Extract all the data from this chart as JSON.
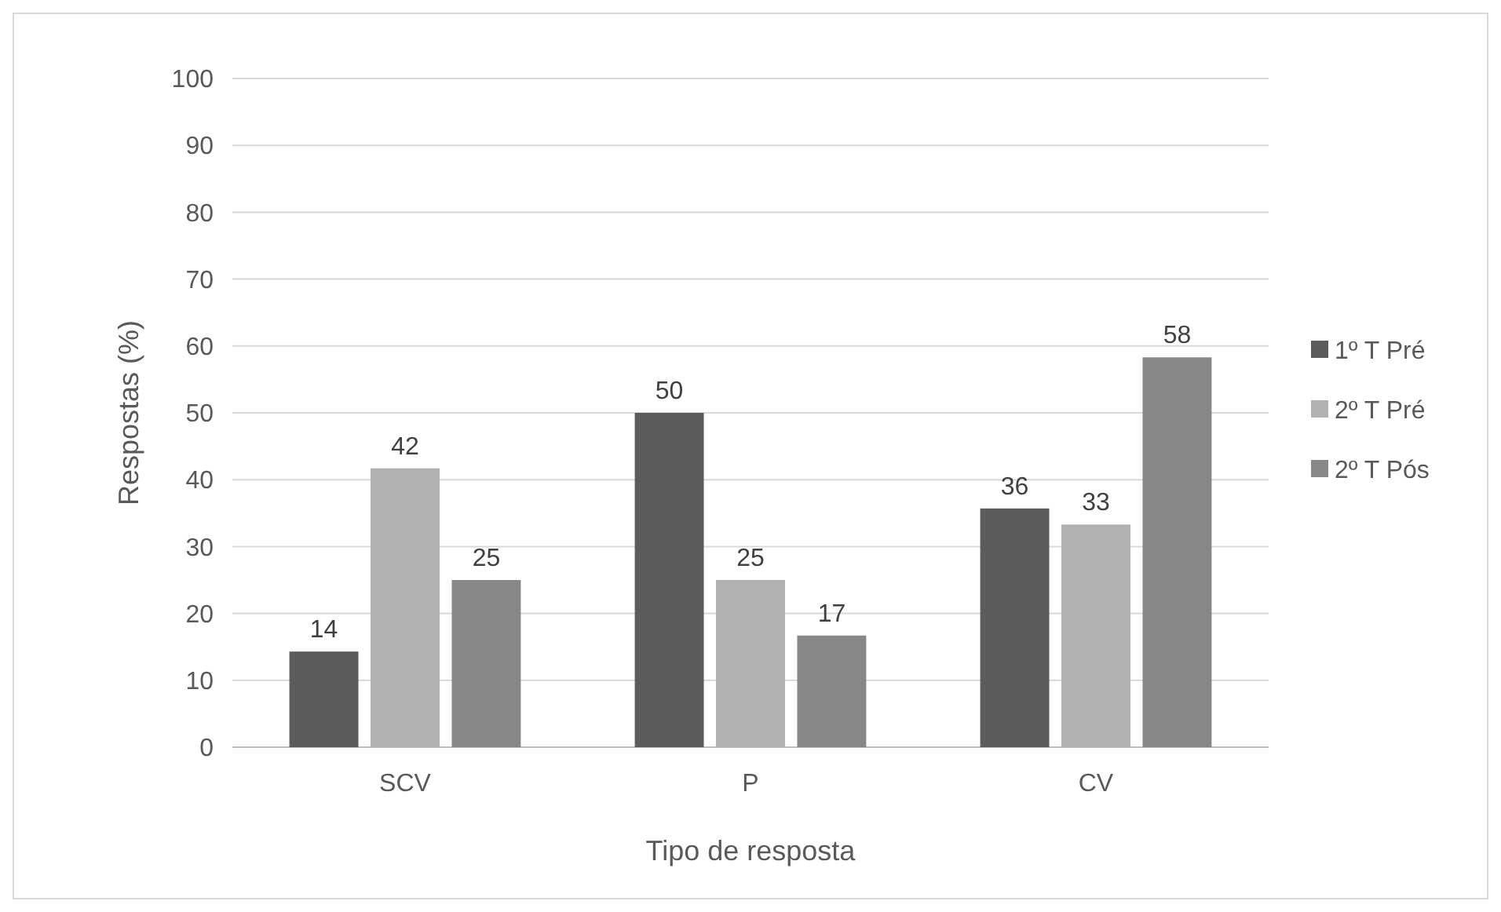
{
  "chart_data": {
    "type": "bar",
    "xlabel": "Tipo de resposta",
    "ylabel": "Respostas (%)",
    "categories": [
      "SCV",
      "P",
      "CV"
    ],
    "series": [
      {
        "name": "1º T Pré",
        "color": "#5b5b5b",
        "values": [
          14.3,
          50,
          35.7
        ],
        "value_labels": [
          "14",
          "50",
          "36"
        ]
      },
      {
        "name": "2º T Pré",
        "color": "#b1b1b1",
        "values": [
          41.7,
          25,
          33.3
        ],
        "value_labels": [
          "42",
          "25",
          "33"
        ]
      },
      {
        "name": "2º T Pós",
        "color": "#878787",
        "values": [
          25,
          16.7,
          58.3
        ],
        "value_labels": [
          "25",
          "17",
          "58"
        ]
      }
    ],
    "ylim": [
      0,
      100
    ],
    "yticks": [
      0,
      10,
      20,
      30,
      40,
      50,
      60,
      70,
      80,
      90,
      100
    ],
    "grid": "y",
    "legend": "right"
  }
}
